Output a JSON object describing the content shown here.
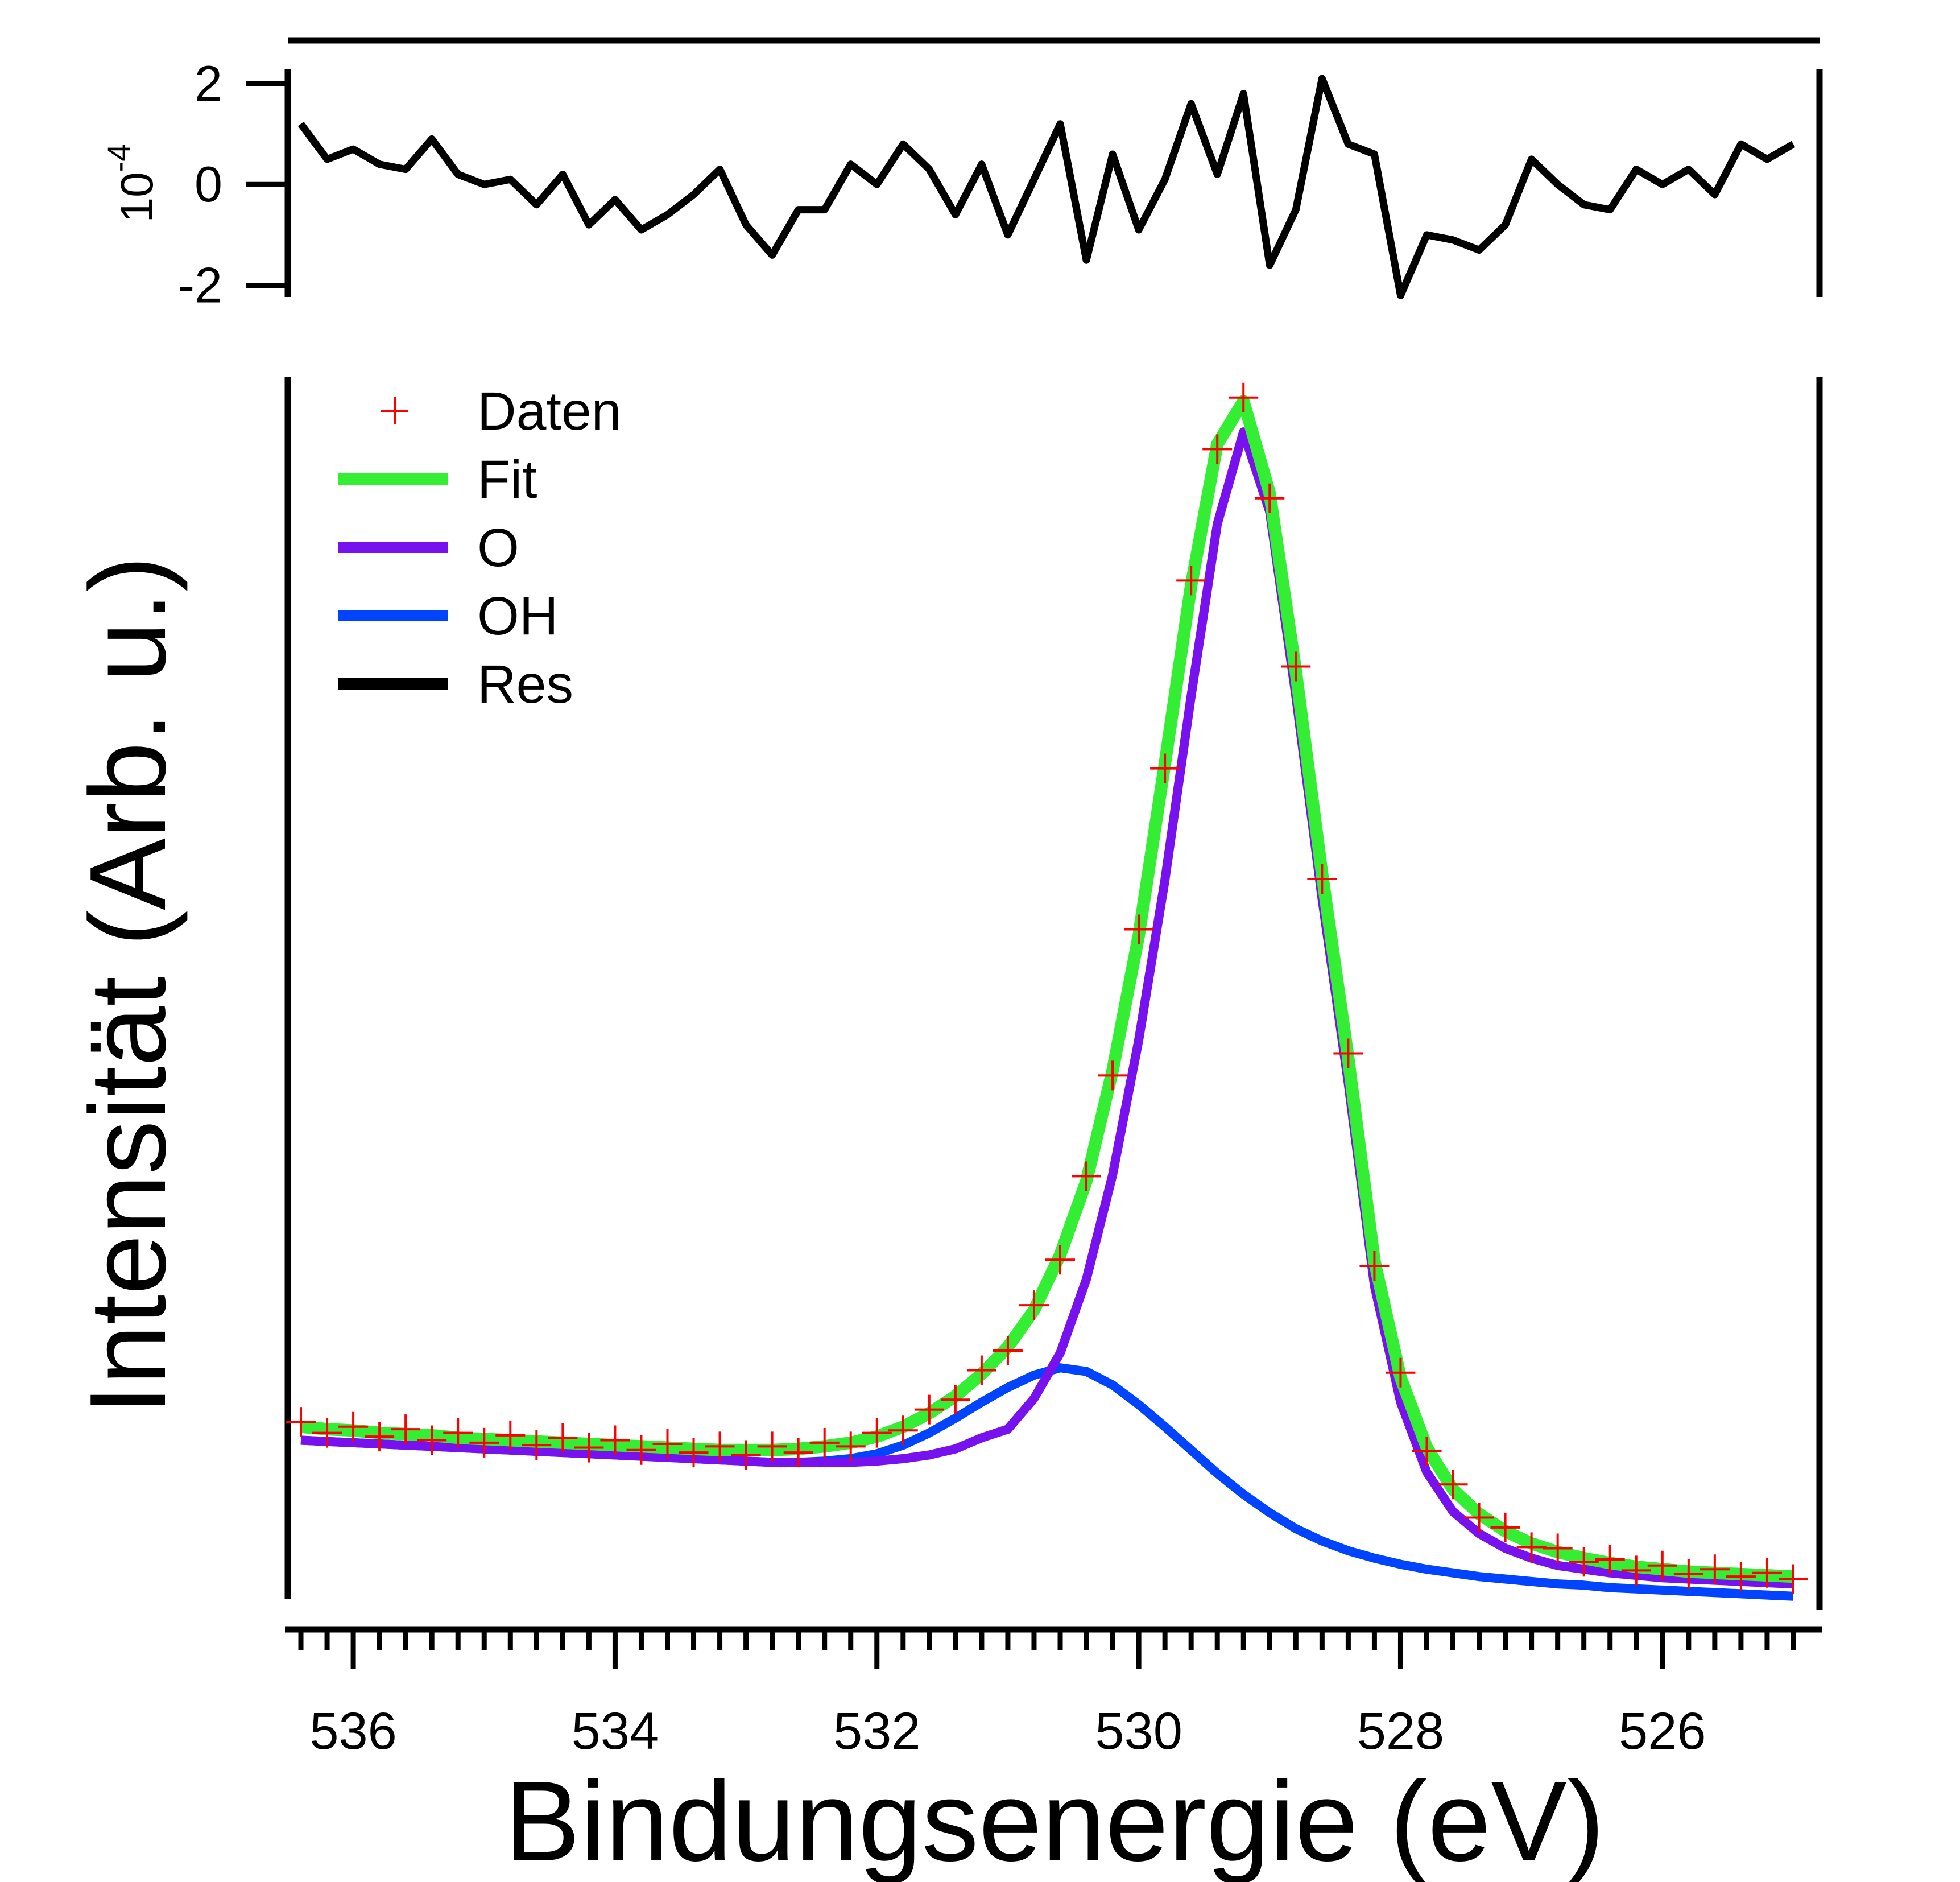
{
  "chart_data": [
    {
      "type": "line",
      "y_label": "10",
      "y_label_exponent": "-4",
      "x": [
        536.4,
        536.2,
        536.0,
        535.8,
        535.6,
        535.4,
        535.2,
        535.0,
        534.8,
        534.6,
        534.4,
        534.2,
        534.0,
        533.8,
        533.6,
        533.4,
        533.2,
        533.0,
        532.8,
        532.6,
        532.4,
        532.2,
        532.0,
        531.8,
        531.6,
        531.4,
        531.2,
        531.0,
        530.8,
        530.6,
        530.4,
        530.2,
        530.0,
        529.8,
        529.6,
        529.4,
        529.2,
        529.0,
        528.8,
        528.6,
        528.4,
        528.2,
        528.0,
        527.8,
        527.6,
        527.4,
        527.2,
        527.0,
        526.8,
        526.6,
        526.4,
        526.2,
        526.0,
        525.8,
        525.6,
        525.4,
        525.2,
        525.0
      ],
      "series": [
        {
          "name": "Res",
          "color": "#000000",
          "values": [
            1.2,
            0.5,
            0.7,
            0.4,
            0.3,
            0.9,
            0.2,
            0.0,
            0.1,
            -0.4,
            0.2,
            -0.8,
            -0.3,
            -0.9,
            -0.6,
            -0.2,
            0.3,
            -0.8,
            -1.4,
            -0.5,
            -0.5,
            0.4,
            0.0,
            0.8,
            0.3,
            -0.6,
            0.4,
            -1.0,
            0.1,
            1.2,
            -1.5,
            0.6,
            -0.9,
            0.1,
            1.6,
            0.2,
            1.8,
            -1.6,
            -0.5,
            2.1,
            0.8,
            0.6,
            -2.2,
            -1.0,
            -1.1,
            -1.3,
            -0.8,
            0.5,
            0.0,
            -0.4,
            -0.5,
            0.3,
            0.0,
            0.3,
            -0.2,
            0.8,
            0.5,
            0.8
          ]
        }
      ],
      "xlim": [
        536.5,
        524.8
      ],
      "ylim": [
        -2.23,
        2.28
      ],
      "yticks": [
        -2,
        0,
        2
      ]
    },
    {
      "type": "line",
      "x_label": "Bindungsenergie (eV)",
      "y_label": "Intensität (Arb. u.)",
      "x": [
        536.4,
        536.2,
        536.0,
        535.8,
        535.6,
        535.4,
        535.2,
        535.0,
        534.8,
        534.6,
        534.4,
        534.2,
        534.0,
        533.8,
        533.6,
        533.4,
        533.2,
        533.0,
        532.8,
        532.6,
        532.4,
        532.2,
        532.0,
        531.8,
        531.6,
        531.4,
        531.2,
        531.0,
        530.8,
        530.6,
        530.4,
        530.2,
        530.0,
        529.8,
        529.6,
        529.4,
        529.2,
        529.0,
        528.8,
        528.6,
        528.4,
        528.2,
        528.0,
        527.8,
        527.6,
        527.4,
        527.2,
        527.0,
        526.8,
        526.6,
        526.4,
        526.2,
        526.0,
        525.8,
        525.6,
        525.4,
        525.2,
        525.0
      ],
      "series": [
        {
          "name": "Daten",
          "color": "#ff0000",
          "mode": "markers",
          "values": [
            16.9,
            16.0,
            16.5,
            15.7,
            16.3,
            15.4,
            16.0,
            15.2,
            15.8,
            15.0,
            15.6,
            14.8,
            15.4,
            14.6,
            15.1,
            14.4,
            14.9,
            14.2,
            14.9,
            14.4,
            15.2,
            14.9,
            16.0,
            16.2,
            17.9,
            18.7,
            21.1,
            22.7,
            26.4,
            30.1,
            36.9,
            45.1,
            57.0,
            70.1,
            85.4,
            96.1,
            100.3,
            92.1,
            78.4,
            61.1,
            46.9,
            29.6,
            20.9,
            14.5,
            11.8,
            9.1,
            8.3,
            6.7,
            6.6,
            5.5,
            5.7,
            4.8,
            5.2,
            4.5,
            4.9,
            4.3,
            4.6,
            4.1
          ]
        },
        {
          "name": "Fit",
          "color": "#33ee33",
          "mode": "line",
          "values": [
            16.5,
            16.3,
            16.2,
            16.0,
            15.9,
            15.8,
            15.6,
            15.5,
            15.4,
            15.3,
            15.2,
            15.1,
            15.0,
            14.9,
            14.8,
            14.7,
            14.6,
            14.6,
            14.6,
            14.7,
            14.9,
            15.2,
            15.7,
            16.5,
            17.6,
            19.0,
            20.8,
            23.0,
            26.0,
            30.5,
            36.5,
            45.5,
            56.5,
            70.5,
            85.0,
            96.5,
            100.0,
            92.5,
            78.0,
            61.5,
            46.5,
            30.0,
            20.5,
            14.8,
            11.4,
            9.4,
            8.0,
            7.0,
            6.3,
            5.8,
            5.4,
            5.1,
            4.9,
            4.7,
            4.6,
            4.5,
            4.4,
            4.3
          ]
        },
        {
          "name": "O",
          "color": "#7711ee",
          "mode": "line",
          "values": [
            15.4,
            15.3,
            15.2,
            15.1,
            15.0,
            14.9,
            14.8,
            14.7,
            14.6,
            14.5,
            14.4,
            14.3,
            14.2,
            14.1,
            14.0,
            13.9,
            13.8,
            13.7,
            13.6,
            13.6,
            13.6,
            13.6,
            13.7,
            13.9,
            14.2,
            14.7,
            15.6,
            16.3,
            18.8,
            22.5,
            28.5,
            37.0,
            48.0,
            61.0,
            76.0,
            90.0,
            97.5,
            91.0,
            76.0,
            59.5,
            44.5,
            28.0,
            18.5,
            12.8,
            9.6,
            7.8,
            6.6,
            5.8,
            5.2,
            4.9,
            4.6,
            4.4,
            4.2,
            4.1,
            4.0,
            3.9,
            3.8,
            3.7
          ]
        },
        {
          "name": "OH",
          "color": "#0044ff",
          "mode": "line",
          "values": [
            15.4,
            15.3,
            15.2,
            15.1,
            15.0,
            14.9,
            14.8,
            14.7,
            14.6,
            14.5,
            14.4,
            14.3,
            14.2,
            14.1,
            14.0,
            13.9,
            13.8,
            13.7,
            13.6,
            13.6,
            13.7,
            13.9,
            14.3,
            15.0,
            16.0,
            17.2,
            18.5,
            19.7,
            20.7,
            21.3,
            21.0,
            19.9,
            18.3,
            16.5,
            14.6,
            12.7,
            11.0,
            9.5,
            8.2,
            7.2,
            6.4,
            5.8,
            5.3,
            4.9,
            4.6,
            4.3,
            4.1,
            3.9,
            3.7,
            3.6,
            3.4,
            3.3,
            3.2,
            3.1,
            3.0,
            2.9,
            2.8,
            2.7
          ]
        }
      ],
      "xlim": [
        536.5,
        524.8
      ],
      "ylim": [
        0,
        102
      ],
      "xticks": [
        536,
        534,
        532,
        530,
        528,
        526
      ],
      "xminorticks": [
        536.4,
        536.2,
        535.8,
        535.6,
        535.4,
        535.2,
        535.0,
        534.8,
        534.6,
        534.4,
        534.2,
        533.8,
        533.6,
        533.4,
        533.2,
        533.0,
        532.8,
        532.6,
        532.4,
        532.2,
        531.8,
        531.6,
        531.4,
        531.2,
        531.0,
        530.8,
        530.6,
        530.4,
        530.2,
        529.8,
        529.6,
        529.4,
        529.2,
        529.0,
        528.8,
        528.6,
        528.4,
        528.2,
        527.8,
        527.6,
        527.4,
        527.2,
        527.0,
        526.8,
        526.6,
        526.4,
        526.2,
        525.8,
        525.6,
        525.4,
        525.2,
        525.0
      ]
    }
  ]
}
